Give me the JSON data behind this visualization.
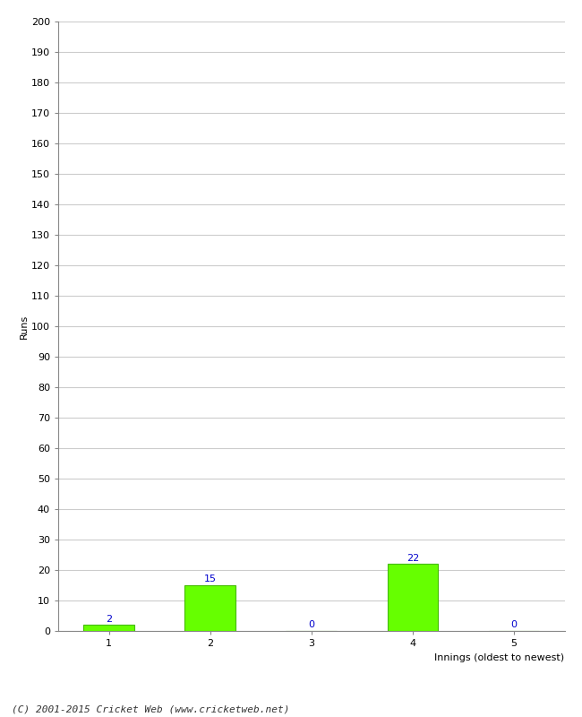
{
  "categories": [
    1,
    2,
    3,
    4,
    5
  ],
  "values": [
    2,
    15,
    0,
    22,
    0
  ],
  "bar_color": "#66ff00",
  "bar_edge_color": "#44bb00",
  "label_color": "#0000cc",
  "xlabel": "Innings (oldest to newest)",
  "ylabel": "Runs",
  "ylim": [
    0,
    200
  ],
  "yticks": [
    0,
    10,
    20,
    30,
    40,
    50,
    60,
    70,
    80,
    90,
    100,
    110,
    120,
    130,
    140,
    150,
    160,
    170,
    180,
    190,
    200
  ],
  "background_color": "#ffffff",
  "grid_color": "#cccccc",
  "footer": "(C) 2001-2015 Cricket Web (www.cricketweb.net)",
  "bar_width": 0.5,
  "label_fontsize": 8,
  "axis_fontsize": 8,
  "ylabel_fontsize": 8,
  "footer_fontsize": 8
}
